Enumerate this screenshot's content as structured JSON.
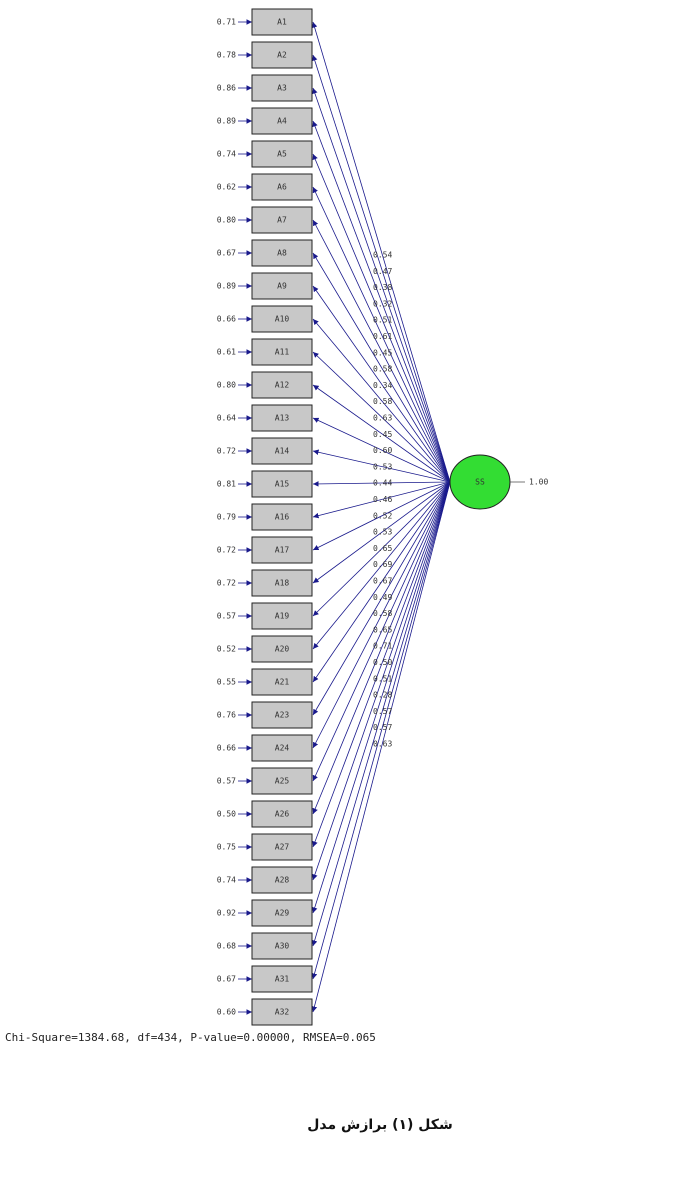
{
  "latent": {
    "label": "SS",
    "variance": "1.00"
  },
  "indicators": [
    {
      "label": "A1",
      "error": "0.71",
      "loading": "0.54"
    },
    {
      "label": "A2",
      "error": "0.78",
      "loading": "0.47"
    },
    {
      "label": "A3",
      "error": "0.86",
      "loading": "0.38"
    },
    {
      "label": "A4",
      "error": "0.89",
      "loading": "0.32"
    },
    {
      "label": "A5",
      "error": "0.74",
      "loading": "0.51"
    },
    {
      "label": "A6",
      "error": "0.62",
      "loading": "0.61"
    },
    {
      "label": "A7",
      "error": "0.80",
      "loading": "0.45"
    },
    {
      "label": "A8",
      "error": "0.67",
      "loading": "0.58"
    },
    {
      "label": "A9",
      "error": "0.89",
      "loading": "0.34"
    },
    {
      "label": "A10",
      "error": "0.66",
      "loading": "0.58"
    },
    {
      "label": "A11",
      "error": "0.61",
      "loading": "0.63"
    },
    {
      "label": "A12",
      "error": "0.80",
      "loading": "0.45"
    },
    {
      "label": "A13",
      "error": "0.64",
      "loading": "0.60"
    },
    {
      "label": "A14",
      "error": "0.72",
      "loading": "0.53"
    },
    {
      "label": "A15",
      "error": "0.81",
      "loading": "0.44"
    },
    {
      "label": "A16",
      "error": "0.79",
      "loading": "0.46"
    },
    {
      "label": "A17",
      "error": "0.72",
      "loading": "0.52"
    },
    {
      "label": "A18",
      "error": "0.72",
      "loading": "0.53"
    },
    {
      "label": "A19",
      "error": "0.57",
      "loading": "0.65"
    },
    {
      "label": "A20",
      "error": "0.52",
      "loading": "0.69"
    },
    {
      "label": "A21",
      "error": "0.55",
      "loading": "0.67"
    },
    {
      "label": "A23",
      "error": "0.76",
      "loading": "0.49"
    },
    {
      "label": "A24",
      "error": "0.66",
      "loading": "0.58"
    },
    {
      "label": "A25",
      "error": "0.57",
      "loading": "0.65"
    },
    {
      "label": "A26",
      "error": "0.50",
      "loading": "0.71"
    },
    {
      "label": "A27",
      "error": "0.75",
      "loading": "0.50"
    },
    {
      "label": "A28",
      "error": "0.74",
      "loading": "0.51"
    },
    {
      "label": "A29",
      "error": "0.92",
      "loading": "0.28"
    },
    {
      "label": "A30",
      "error": "0.68",
      "loading": "0.57"
    },
    {
      "label": "A31",
      "error": "0.67",
      "loading": "0.57"
    },
    {
      "label": "A32",
      "error": "0.60",
      "loading": "0.63"
    }
  ],
  "fit": "Chi-Square=1384.68, df=434, P-value=0.00000, RMSEA=0.065",
  "caption": "شکل (۱) برازش مدل"
}
